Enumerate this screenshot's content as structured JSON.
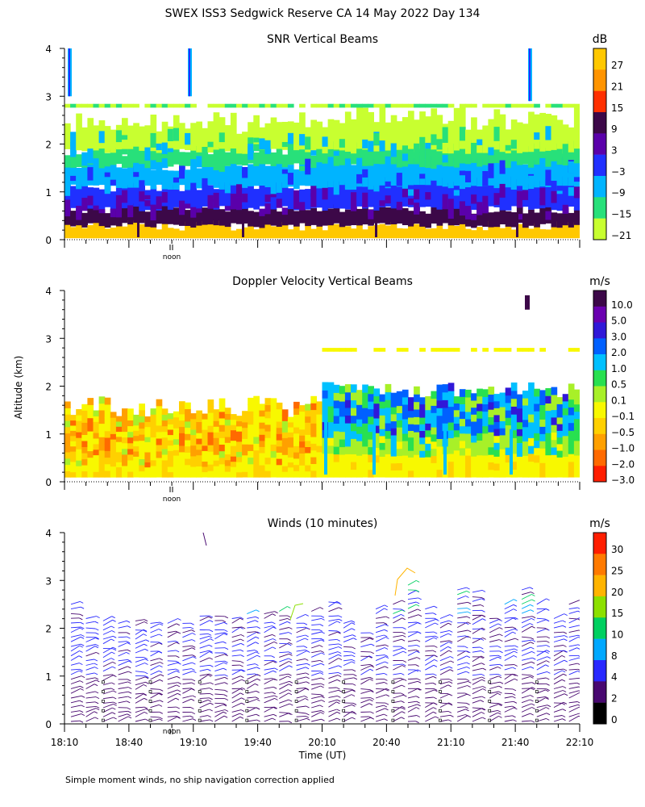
{
  "figure_title": "SWEX ISS3 Sedgwick Reserve CA  14 May 2022 Day 134",
  "footnote": "Simple moment winds, no ship navigation correction applied",
  "chart_data": [
    {
      "type": "heatmap",
      "title": "SNR Vertical Beams",
      "ylim": [
        0,
        4
      ],
      "yticks": [
        0,
        1,
        2,
        3,
        4
      ],
      "noon_label": "noon",
      "colorbar": {
        "unit": "dB",
        "labels": [
          "27",
          "21",
          "15",
          "9",
          "3",
          "−3",
          "−9",
          "−15",
          "−21"
        ],
        "colors": [
          "#ffc800",
          "#ff9400",
          "#ff3000",
          "#3c0848",
          "#5a00aa",
          "#2030ff",
          "#00b4ff",
          "#28e07a",
          "#c8ff30"
        ]
      },
      "layers": [
        {
          "class": 0,
          "alt": [
            0.03,
            0.3
          ]
        },
        {
          "class": 3,
          "alt": [
            0.3,
            0.65
          ]
        },
        {
          "class": 5,
          "alt": [
            0.65,
            1.1
          ]
        },
        {
          "class": 6,
          "alt": [
            1.1,
            1.55
          ]
        },
        {
          "class": 7,
          "alt": [
            1.55,
            1.85
          ]
        },
        {
          "class": 8,
          "alt": [
            1.85,
            2.4
          ]
        }
      ],
      "isolated_echo_alt": 2.8
    },
    {
      "type": "heatmap",
      "title": "Doppler Velocity Vertical Beams",
      "ylim": [
        0,
        4
      ],
      "yticks": [
        0,
        1,
        2,
        3,
        4
      ],
      "ylabel": "Altitude (km)",
      "noon_label": "noon",
      "colorbar": {
        "unit": "m/s",
        "labels": [
          "10.0",
          "5.0",
          "3.0",
          "2.0",
          "1.0",
          "0.5",
          "0.1",
          "−0.1",
          "−0.5",
          "−1.0",
          "−2.0",
          "−3.0"
        ],
        "colors": [
          "#3c0848",
          "#6a00b0",
          "#3018d8",
          "#0060ff",
          "#00c0ff",
          "#28e050",
          "#a8f028",
          "#f8f800",
          "#ffd000",
          "#ffa000",
          "#ff6a00",
          "#ff1e00"
        ]
      },
      "regimes": [
        {
          "time_range": [
            "18:10",
            "20:10"
          ],
          "alt": [
            0.1,
            1.8
          ],
          "dominant": [
            "−0.1",
            "−0.5",
            "−1.0"
          ]
        },
        {
          "time_range": [
            "20:10",
            "22:10"
          ],
          "alt": [
            0.1,
            1.9
          ],
          "dominant": [
            "−0.1",
            "0.5",
            "1.0",
            "2.0"
          ]
        }
      ]
    },
    {
      "type": "wind_barbs",
      "title": "Winds (10 minutes)",
      "ylim": [
        0,
        4
      ],
      "yticks": [
        0,
        1,
        2,
        3,
        4
      ],
      "xlabel": "Time (UT)",
      "xticks": [
        "18:10",
        "18:40",
        "19:10",
        "19:40",
        "20:10",
        "20:40",
        "21:10",
        "21:40",
        "22:10"
      ],
      "noon_label": "noon",
      "colorbar": {
        "unit": "m/s",
        "labels": [
          "30",
          "25",
          "20",
          "15",
          "10",
          "8",
          "4",
          "2",
          "0"
        ],
        "colors": [
          "#ff1e00",
          "#ff7a00",
          "#ffb400",
          "#8ce000",
          "#00d060",
          "#00a8ff",
          "#2828ff",
          "#480870",
          "#000000"
        ]
      },
      "profiles": [
        {
          "time": "18:13",
          "top_km": 2.6
        },
        {
          "time": "18:20",
          "top_km": 2.3
        },
        {
          "time": "18:28",
          "top_km": 2.25
        },
        {
          "time": "18:35",
          "top_km": 2.2
        },
        {
          "time": "18:43",
          "top_km": 2.25
        },
        {
          "time": "18:50",
          "top_km": 2.2
        },
        {
          "time": "18:58",
          "top_km": 2.2
        },
        {
          "time": "19:05",
          "top_km": 2.2
        },
        {
          "time": "19:13",
          "top_km": 2.35
        },
        {
          "time": "19:20",
          "top_km": 2.35
        },
        {
          "time": "19:28",
          "top_km": 2.3
        },
        {
          "time": "19:35",
          "top_km": 2.4
        },
        {
          "time": "19:43",
          "top_km": 2.4
        },
        {
          "time": "19:50",
          "top_km": 2.45
        },
        {
          "time": "19:58",
          "top_km": 2.3
        },
        {
          "time": "20:05",
          "top_km": 2.45
        },
        {
          "time": "20:13",
          "top_km": 2.65
        },
        {
          "time": "20:20",
          "top_km": 2.2
        },
        {
          "time": "20:28",
          "top_km": 2.0
        },
        {
          "time": "20:35",
          "top_km": 2.5
        },
        {
          "time": "20:43",
          "top_km": 2.6
        },
        {
          "time": "20:50",
          "top_km": 3.0
        },
        {
          "time": "20:58",
          "top_km": 2.5
        },
        {
          "time": "21:05",
          "top_km": 2.3
        },
        {
          "time": "21:13",
          "top_km": 2.9
        },
        {
          "time": "21:20",
          "top_km": 2.85
        },
        {
          "time": "21:28",
          "top_km": 2.3
        },
        {
          "time": "21:35",
          "top_km": 2.6
        },
        {
          "time": "21:43",
          "top_km": 2.9
        },
        {
          "time": "21:50",
          "top_km": 2.6
        },
        {
          "time": "21:58",
          "top_km": 2.3
        },
        {
          "time": "22:05",
          "top_km": 2.6
        }
      ]
    }
  ]
}
